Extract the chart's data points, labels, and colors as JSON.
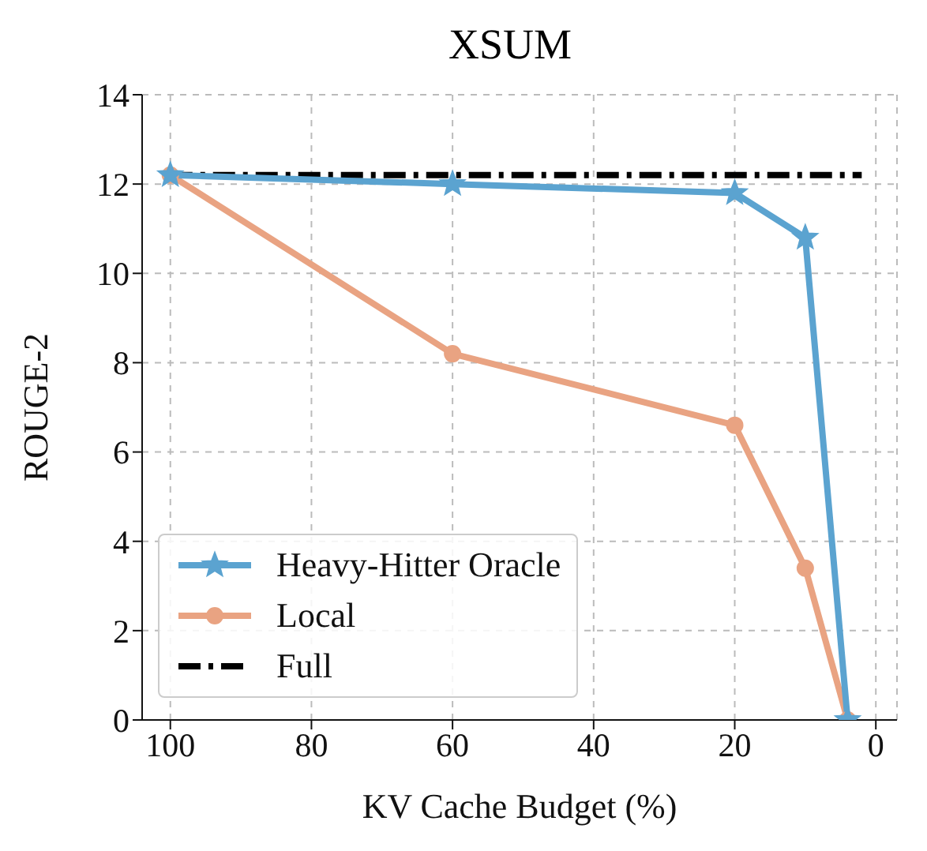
{
  "chart_data": {
    "type": "line",
    "title": "XSUM",
    "xlabel": "KV Cache Budget (%)",
    "ylabel": "ROUGE-2",
    "xlim": [
      104,
      -3
    ],
    "xticks": [
      100,
      80,
      60,
      40,
      20,
      0
    ],
    "ylim": [
      0,
      14
    ],
    "yticks": [
      0,
      2,
      4,
      6,
      8,
      10,
      12,
      14
    ],
    "grid": true,
    "legend": "bottom left",
    "series": [
      {
        "name": "Heavy-Hitter Oracle",
        "color": "#5ba3d0",
        "x": [
          100,
          60,
          20,
          10,
          4
        ],
        "values": [
          12.2,
          12.0,
          11.8,
          10.8,
          0
        ],
        "marker": "star",
        "line_style": "solid"
      },
      {
        "name": "Local",
        "color": "#e9a382",
        "x": [
          100,
          60,
          20,
          10,
          4
        ],
        "values": [
          12.2,
          8.2,
          6.6,
          3.4,
          0
        ],
        "marker": "circle",
        "line_style": "solid"
      },
      {
        "name": "Full",
        "color": "#000000",
        "x": [
          100,
          2
        ],
        "values": [
          12.2,
          12.2
        ],
        "marker": "none",
        "line_style": "dashed"
      }
    ]
  }
}
